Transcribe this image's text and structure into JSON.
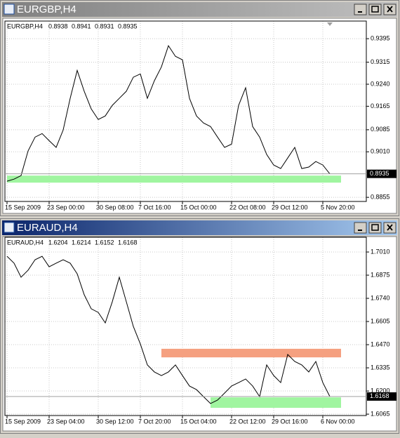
{
  "chart_data": [
    {
      "type": "line",
      "title": "EURGBP,H4",
      "active": false,
      "ohlc": [
        0.8938,
        0.8941,
        0.8931,
        0.8935
      ],
      "color": "#000000",
      "grid": true,
      "categories": [
        "15 Sep 2009",
        null,
        null,
        null,
        null,
        null,
        "23 Sep 00:00",
        null,
        null,
        null,
        null,
        null,
        null,
        "30 Sep 08:00",
        null,
        null,
        null,
        null,
        null,
        "7 Oct 16:00",
        null,
        null,
        null,
        null,
        null,
        "15 Oct 00:00",
        null,
        null,
        null,
        null,
        null,
        null,
        "22 Oct 08:00",
        null,
        null,
        null,
        null,
        null,
        "29 Oct 12:00",
        null,
        null,
        null,
        null,
        null,
        null,
        "5 Nov 20:00",
        null
      ],
      "values": [
        0.891,
        0.8917,
        0.8929,
        0.9013,
        0.906,
        0.9072,
        0.9048,
        0.9025,
        0.9084,
        0.9192,
        0.9287,
        0.9216,
        0.9156,
        0.912,
        0.9132,
        0.9168,
        0.9192,
        0.9216,
        0.9264,
        0.9275,
        0.9192,
        0.9252,
        0.9299,
        0.9371,
        0.9335,
        0.9323,
        0.9192,
        0.9132,
        0.9108,
        0.9096,
        0.906,
        0.9025,
        0.9036,
        0.9168,
        0.9228,
        0.9096,
        0.906,
        0.9001,
        0.8965,
        0.8953,
        0.8989,
        0.9025,
        0.8953,
        0.8958,
        0.8977,
        0.8965,
        0.8935
      ],
      "ylim": [
        0.8841,
        0.9455
      ],
      "yticks": [
        0.9395,
        0.9315,
        {
          "value": 0.924,
          "label": "0.9240"
        },
        0.9165,
        0.9085,
        {
          "value": 0.901,
          "label": "0.9010"
        },
        0.8855
      ],
      "zones": [
        {
          "color": "#a0f5a0",
          "low": 0.8905,
          "high": 0.8929,
          "start": 0
        }
      ]
    },
    {
      "type": "line",
      "title": "EURAUD,H4",
      "active": true,
      "ohlc": [
        1.6204,
        1.6214,
        1.6152,
        1.6168
      ],
      "color": "#000000",
      "grid": true,
      "categories": [
        "15 Sep 2009",
        null,
        null,
        null,
        null,
        null,
        "23 Sep 04:00",
        null,
        null,
        null,
        null,
        null,
        null,
        "30 Sep 12:00",
        null,
        null,
        null,
        null,
        null,
        "7 Oct 20:00",
        null,
        null,
        null,
        null,
        null,
        "15 Oct 04:00",
        null,
        null,
        null,
        null,
        null,
        null,
        "22 Oct 12:00",
        null,
        null,
        null,
        null,
        null,
        "29 Oct 16:00",
        null,
        null,
        null,
        null,
        null,
        null,
        "6 Nov 00:00",
        null
      ],
      "values": [
        1.6985,
        1.6945,
        1.6863,
        1.6904,
        1.6965,
        1.6985,
        1.6924,
        1.6945,
        1.6965,
        1.6945,
        1.6883,
        1.6761,
        1.6679,
        1.6658,
        1.6597,
        1.672,
        1.6863,
        1.672,
        1.6576,
        1.6474,
        1.6352,
        1.6311,
        1.629,
        1.6311,
        1.6352,
        1.629,
        1.6229,
        1.6208,
        1.6167,
        1.6127,
        1.6147,
        1.6188,
        1.6229,
        1.6249,
        1.627,
        1.6229,
        1.6167,
        1.6352,
        1.629,
        1.6249,
        1.6413,
        1.6372,
        1.6352,
        1.6311,
        1.6372,
        1.6249,
        1.6168
      ],
      "ylim": [
        1.6057,
        1.7096
      ],
      "yticks": [
        {
          "value": 1.701,
          "label": "1.7010"
        },
        1.6875,
        {
          "value": 1.674,
          "label": "1.6740"
        },
        1.6605,
        {
          "value": 1.647,
          "label": "1.6470"
        },
        1.6335,
        {
          "value": 1.62,
          "label": "1.6200"
        },
        1.6065
      ],
      "zones": [
        {
          "color": "#f5a080",
          "low": 1.6396,
          "high": 1.6446,
          "start": 22
        },
        {
          "color": "#a0f5a0",
          "low": 1.6102,
          "high": 1.6163,
          "start": 29
        }
      ]
    }
  ]
}
